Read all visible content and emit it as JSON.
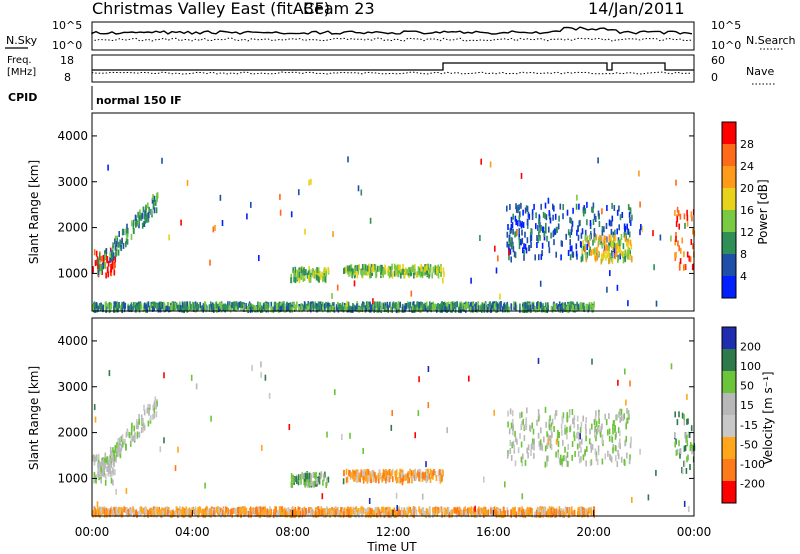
{
  "header": {
    "title": "Christmas Valley East (fitACF)",
    "beam": "Beam 23",
    "date": "14/Jan/2011"
  },
  "summary": {
    "nsky_label": "N.Sky",
    "nsky_ticks": [
      "10^5",
      "10^0"
    ],
    "nsearch_label": "N.Search",
    "nsearch_ticks": [
      "10^5",
      "10^0"
    ],
    "freq_label": [
      "Freq.",
      "[MHz]"
    ],
    "freq_ticks": [
      "18",
      "8"
    ],
    "nave_label": "Nave",
    "nave_ticks": [
      "60",
      "0"
    ],
    "cpid_label": "CPID",
    "cpid_text": "normal 150 IF"
  },
  "chart_data": [
    {
      "type": "heatmap",
      "name": "power",
      "ylabel": "Slant Range [km]",
      "xlabel": "",
      "xlim": [
        0,
        24
      ],
      "ylim": [
        180,
        4500
      ],
      "yticks": [
        "1000",
        "2000",
        "3000",
        "4000"
      ],
      "colorbar_label": "Power [dB]",
      "colorbar_ticks": [
        "4",
        "8",
        "12",
        "16",
        "20",
        "24",
        "28"
      ],
      "colors": [
        "#0020ff",
        "#1f4fa8",
        "#2e8f57",
        "#7ac943",
        "#e8d21a",
        "#ff9a1a",
        "#ff6a1a",
        "#ff0000"
      ],
      "bands": [
        {
          "t0": 0.0,
          "t1": 0.9,
          "r0": 900,
          "r1": 1500,
          "level": 7
        },
        {
          "t0": 0.2,
          "t1": 2.6,
          "r0": 1150,
          "r1": 2600,
          "level": 2,
          "slope": 1
        },
        {
          "t0": 7.9,
          "t1": 9.4,
          "r0": 850,
          "r1": 1100,
          "level": 3
        },
        {
          "t0": 10.0,
          "t1": 14.0,
          "r0": 950,
          "r1": 1150,
          "level": 3
        },
        {
          "t0": 0.0,
          "t1": 20.0,
          "r0": 200,
          "r1": 330,
          "level": 2
        },
        {
          "t0": 16.5,
          "t1": 21.5,
          "r0": 1300,
          "r1": 2500,
          "level": 1
        },
        {
          "t0": 19.5,
          "t1": 21.5,
          "r0": 1250,
          "r1": 1800,
          "level": 4
        },
        {
          "t0": 23.2,
          "t1": 24.0,
          "r0": 1100,
          "r1": 2400,
          "level": 6
        }
      ]
    },
    {
      "type": "heatmap",
      "name": "velocity",
      "ylabel": "Slant Range [km]",
      "xlabel": "Time UT",
      "xlim": [
        0,
        24
      ],
      "ylim": [
        180,
        4500
      ],
      "xticks": [
        "00:00",
        "04:00",
        "08:00",
        "12:00",
        "16:00",
        "20:00",
        "00:00"
      ],
      "yticks": [
        "1000",
        "2000",
        "3000",
        "4000"
      ],
      "colorbar_label": "Velocity [m s⁻¹]",
      "colorbar_ticks": [
        "200",
        "100",
        "50",
        "15",
        "-15",
        "-50",
        "-100",
        "-200"
      ],
      "colors": [
        "#1f2db0",
        "#2f7a4a",
        "#6bc43a",
        "#b8b8b8",
        "#c8c8c8",
        "#ffa61a",
        "#ff7a1a",
        "#ff0000"
      ],
      "bands": [
        {
          "t0": 0.0,
          "t1": 0.9,
          "r0": 900,
          "r1": 1500,
          "level": 3
        },
        {
          "t0": 0.2,
          "t1": 2.6,
          "r0": 1150,
          "r1": 2600,
          "level": 3,
          "slope": 1
        },
        {
          "t0": 7.9,
          "t1": 9.4,
          "r0": 850,
          "r1": 1100,
          "level": 2
        },
        {
          "t0": 10.0,
          "t1": 14.0,
          "r0": 950,
          "r1": 1150,
          "level": 5
        },
        {
          "t0": 0.0,
          "t1": 20.0,
          "r0": 200,
          "r1": 330,
          "level": 5
        },
        {
          "t0": 16.5,
          "t1": 21.5,
          "r0": 1300,
          "r1": 2500,
          "level": 3
        },
        {
          "t0": 23.2,
          "t1": 24.0,
          "r0": 1100,
          "r1": 2400,
          "level": 2
        }
      ]
    }
  ]
}
